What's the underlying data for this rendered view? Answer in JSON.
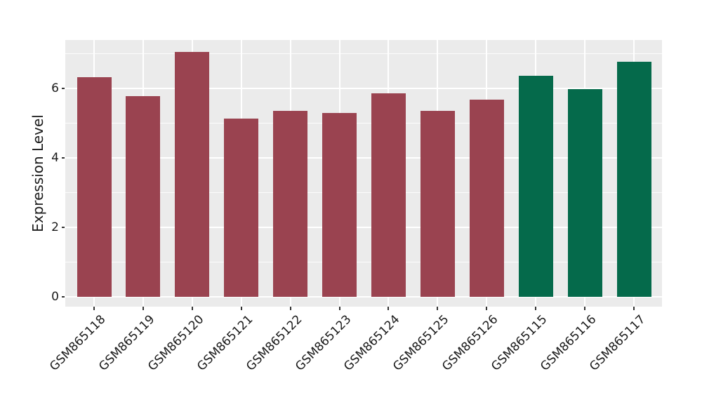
{
  "chart_data": {
    "type": "bar",
    "title": "",
    "xlabel": "",
    "ylabel": "Expression Level",
    "categories": [
      "GSM865118",
      "GSM865119",
      "GSM865120",
      "GSM865121",
      "GSM865122",
      "GSM865123",
      "GSM865124",
      "GSM865125",
      "GSM865126",
      "GSM865115",
      "GSM865116",
      "GSM865117"
    ],
    "values": [
      6.32,
      5.77,
      7.06,
      5.13,
      5.35,
      5.29,
      5.86,
      5.35,
      5.68,
      6.36,
      5.97,
      6.77
    ],
    "bar_colors": [
      "#9A4350",
      "#9A4350",
      "#9A4350",
      "#9A4350",
      "#9A4350",
      "#9A4350",
      "#9A4350",
      "#9A4350",
      "#9A4350",
      "#056A4B",
      "#056A4B",
      "#056A4B"
    ],
    "group_colors": {
      "red_group": "#9A4350",
      "green_group": "#056A4B"
    },
    "yticks": [
      0,
      2,
      4,
      6
    ],
    "minor_yticks": [
      1,
      3,
      5,
      7
    ],
    "ylim": [
      -0.28,
      7.39
    ],
    "grid": true,
    "legend_position": "none",
    "panel_bg": "#EBEBEB",
    "grid_color": "#FFFFFF",
    "x_tick_rotation_deg": 45
  }
}
